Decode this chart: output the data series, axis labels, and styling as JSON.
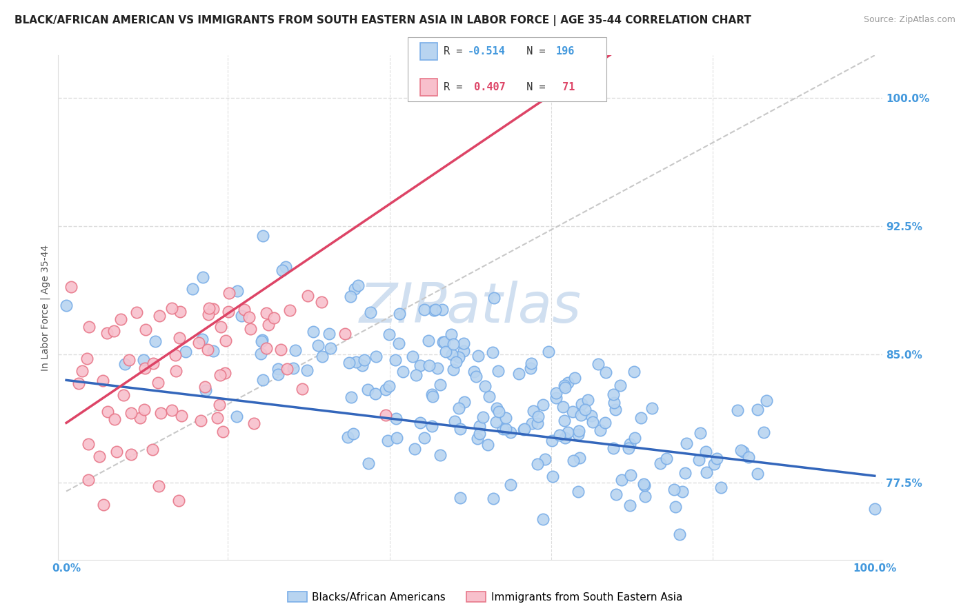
{
  "title": "BLACK/AFRICAN AMERICAN VS IMMIGRANTS FROM SOUTH EASTERN ASIA IN LABOR FORCE | AGE 35-44 CORRELATION CHART",
  "source": "Source: ZipAtlas.com",
  "ylabel": "In Labor Force | Age 35-44",
  "legend_blue_r": "-0.514",
  "legend_blue_n": "196",
  "legend_pink_r": "0.407",
  "legend_pink_n": "71",
  "legend_label_blue": "Blacks/African Americans",
  "legend_label_pink": "Immigrants from South Eastern Asia",
  "blue_color": "#b8d4f0",
  "blue_edge_color": "#7aaee8",
  "pink_color": "#f8c0cc",
  "pink_edge_color": "#e8788a",
  "blue_line_color": "#3366bb",
  "pink_line_color": "#dd4466",
  "gray_line_color": "#c8c8c8",
  "watermark_color": "#d0dff0",
  "background_color": "#ffffff",
  "grid_color": "#dddddd",
  "tick_color": "#4499dd",
  "title_fontsize": 11,
  "axis_label_fontsize": 10,
  "tick_fontsize": 11
}
